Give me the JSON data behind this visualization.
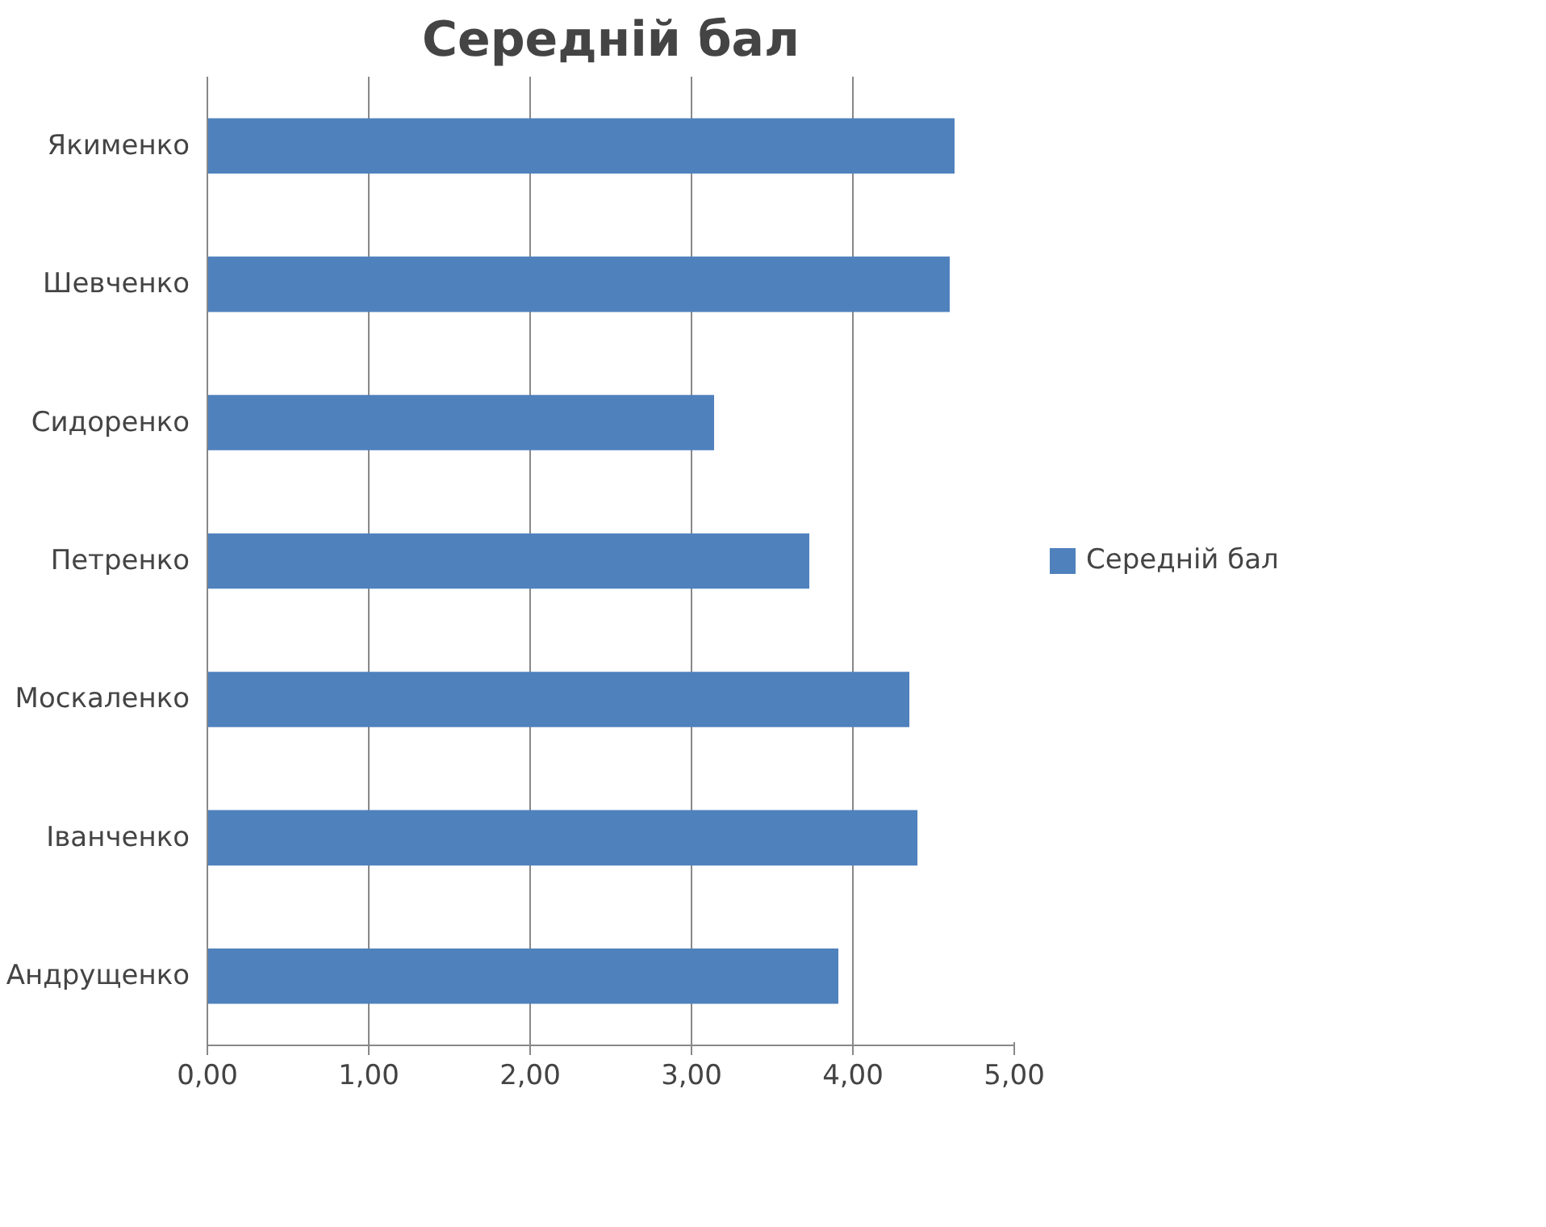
{
  "chart_data": {
    "type": "bar",
    "orientation": "horizontal",
    "title": "Середній бал",
    "categories": [
      "Якименко",
      "Шевченко",
      "Сидоренко",
      "Петренко",
      "Москаленко",
      "Іванченко",
      "Андрущенко"
    ],
    "series": [
      {
        "name": "Середній бал",
        "color": "#4f81bd",
        "values": [
          4.63,
          4.6,
          3.14,
          3.73,
          4.35,
          4.4,
          3.91
        ]
      }
    ],
    "xlim": [
      0,
      5
    ],
    "xticks": [
      {
        "value": 0,
        "label": "0,00"
      },
      {
        "value": 1,
        "label": "1,00"
      },
      {
        "value": 2,
        "label": "2,00"
      },
      {
        "value": 3,
        "label": "3,00"
      },
      {
        "value": 4,
        "label": "4,00"
      },
      {
        "value": 5,
        "label": "5,00"
      }
    ],
    "grid": "x",
    "legend": "right"
  }
}
